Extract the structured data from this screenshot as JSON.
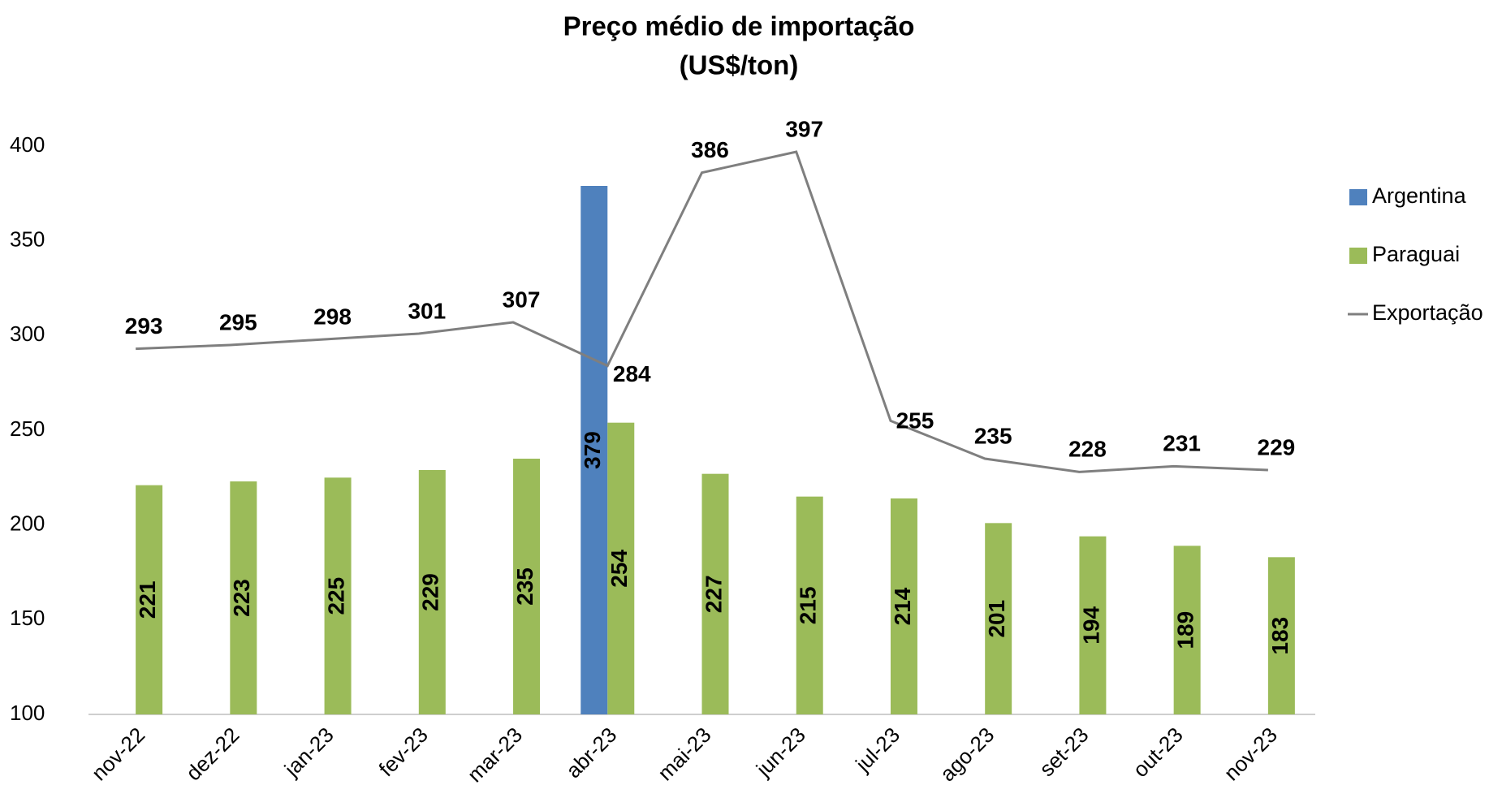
{
  "chart_data": {
    "type": "bar",
    "title": "Preço médio de importação",
    "subtitle": "(US$/ton)",
    "categories": [
      "nov-22",
      "dez-22",
      "jan-23",
      "fev-23",
      "mar-23",
      "abr-23",
      "mai-23",
      "jun-23",
      "jul-23",
      "ago-23",
      "set-23",
      "out-23",
      "nov-23"
    ],
    "series": [
      {
        "name": "Argentina",
        "type": "bar",
        "color": "#4f81bd",
        "values": [
          null,
          null,
          null,
          null,
          null,
          379,
          null,
          null,
          null,
          null,
          null,
          null,
          null
        ]
      },
      {
        "name": "Paraguai",
        "type": "bar",
        "color": "#9bbb59",
        "values": [
          221,
          223,
          225,
          229,
          235,
          254,
          227,
          215,
          214,
          201,
          194,
          189,
          183
        ]
      },
      {
        "name": "Exportação",
        "type": "line",
        "color": "#7f7f7f",
        "values": [
          293,
          295,
          298,
          301,
          307,
          284,
          386,
          397,
          255,
          235,
          228,
          231,
          229
        ]
      }
    ],
    "ylim": [
      100,
      400
    ],
    "yticks": [
      100,
      150,
      200,
      250,
      300,
      350,
      400
    ],
    "grid": false,
    "legend": "right"
  }
}
